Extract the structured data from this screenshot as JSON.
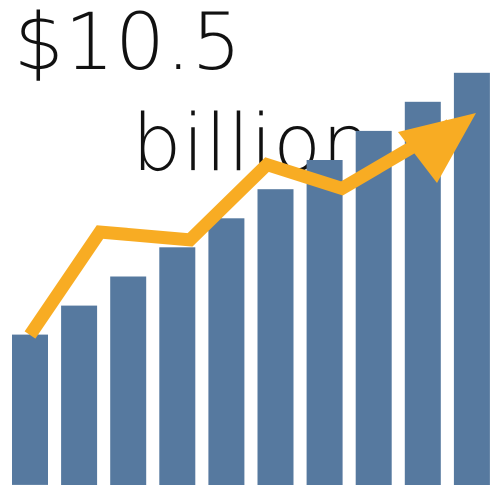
{
  "headline": {
    "amount": "$10.5",
    "unit": "billion"
  },
  "illustration": {
    "bar_count": 10,
    "bar_levels": [
      0.31,
      0.37,
      0.43,
      0.49,
      0.55,
      0.61,
      0.67,
      0.73,
      0.79,
      0.85
    ],
    "trend_levels": [
      0.47,
      0.73,
      0.71,
      0.9,
      0.84,
      1.0
    ],
    "bar_color": "#56799F",
    "arrow_color": "#F8AC23",
    "text_color": "#111111",
    "icon": "upward-trend-arrow-icon"
  }
}
